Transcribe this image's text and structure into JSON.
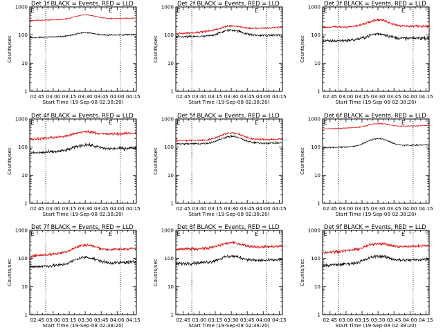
{
  "colors": {
    "events": "#000000",
    "lld": "#e00000",
    "axes": "#000000",
    "background": "#ffffff"
  },
  "chart_data": {
    "type": "line",
    "xlabel": "Start Time (19-Sep-08 02:38:20)",
    "ylabel": "Counts/sec",
    "x_tick_labels": [
      "02:45",
      "03:00",
      "03:15",
      "03:30",
      "03:45",
      "04:00",
      "04:15"
    ],
    "x_ticks_minutes_from_start": [
      7,
      22,
      37,
      52,
      67,
      82,
      97
    ],
    "xlim_minutes_from_start": [
      0,
      100
    ],
    "y_scale": "log",
    "y_tick_labels": [
      "1",
      "10",
      "100",
      "1000"
    ],
    "ylim": [
      1,
      1000
    ],
    "vertical_dotted_lines_minutes_from_start": [
      15,
      85
    ],
    "event_marker_label": "E",
    "event_marker_minutes_from_start": [
      1,
      74
    ],
    "panels": [
      {
        "title": "Det 1f BLACK = Events, RED = LLD",
        "series": [
          {
            "name": "Events",
            "base": 55,
            "peak": 120,
            "start": 80,
            "end": 105,
            "noise": 0.03
          },
          {
            "name": "LLD",
            "base": 230,
            "peak": 520,
            "start": 330,
            "end": 400,
            "noise": 0.02
          }
        ]
      },
      {
        "title": "Det 2f BLACK = Events, RED = LLD",
        "series": [
          {
            "name": "Events",
            "base": 45,
            "peak": 150,
            "start": 85,
            "end": 100,
            "noise": 0.05
          },
          {
            "name": "LLD",
            "base": 70,
            "peak": 210,
            "start": 110,
            "end": 190,
            "noise": 0.04
          }
        ]
      },
      {
        "title": "Det 3f BLACK = Events, RED = LLD",
        "series": [
          {
            "name": "Events",
            "base": 40,
            "peak": 110,
            "start": 60,
            "end": 80,
            "noise": 0.07
          },
          {
            "name": "LLD",
            "base": 120,
            "peak": 350,
            "start": 190,
            "end": 210,
            "noise": 0.05
          }
        ]
      },
      {
        "title": "Det 4f BLACK = Events, RED = LLD",
        "series": [
          {
            "name": "Events",
            "base": 40,
            "peak": 120,
            "start": 60,
            "end": 95,
            "noise": 0.07
          },
          {
            "name": "LLD",
            "base": 130,
            "peak": 350,
            "start": 190,
            "end": 320,
            "noise": 0.06
          }
        ]
      },
      {
        "title": "Det 5f BLACK = Events, RED = LLD",
        "series": [
          {
            "name": "Events",
            "base": 75,
            "peak": 240,
            "start": 130,
            "end": 140,
            "noise": 0.04
          },
          {
            "name": "LLD",
            "base": 100,
            "peak": 320,
            "start": 170,
            "end": 190,
            "noise": 0.04
          }
        ]
      },
      {
        "title": "Det 6f BLACK = Events, RED = LLD",
        "series": [
          {
            "name": "Events",
            "base": 75,
            "peak": 200,
            "start": 95,
            "end": 120,
            "noise": 0.025
          },
          {
            "name": "LLD",
            "base": 390,
            "peak": 680,
            "start": 440,
            "end": 590,
            "noise": 0.02
          }
        ]
      },
      {
        "title": "Det 7f BLACK = Events, RED = LLD",
        "series": [
          {
            "name": "Events",
            "base": 38,
            "peak": 110,
            "start": 50,
            "end": 75,
            "noise": 0.07
          },
          {
            "name": "LLD",
            "base": 85,
            "peak": 300,
            "start": 120,
            "end": 230,
            "noise": 0.06
          }
        ]
      },
      {
        "title": "Det 8f BLACK = Events, RED = LLD",
        "series": [
          {
            "name": "Events",
            "base": 45,
            "peak": 120,
            "start": 65,
            "end": 90,
            "noise": 0.07
          },
          {
            "name": "LLD",
            "base": 140,
            "peak": 360,
            "start": 210,
            "end": 270,
            "noise": 0.06
          }
        ]
      },
      {
        "title": "Det 9f BLACK = Events, RED = LLD",
        "series": [
          {
            "name": "Events",
            "base": 40,
            "peak": 120,
            "start": 55,
            "end": 95,
            "noise": 0.07
          },
          {
            "name": "LLD",
            "base": 130,
            "peak": 340,
            "start": 160,
            "end": 290,
            "noise": 0.06
          }
        ]
      }
    ]
  }
}
